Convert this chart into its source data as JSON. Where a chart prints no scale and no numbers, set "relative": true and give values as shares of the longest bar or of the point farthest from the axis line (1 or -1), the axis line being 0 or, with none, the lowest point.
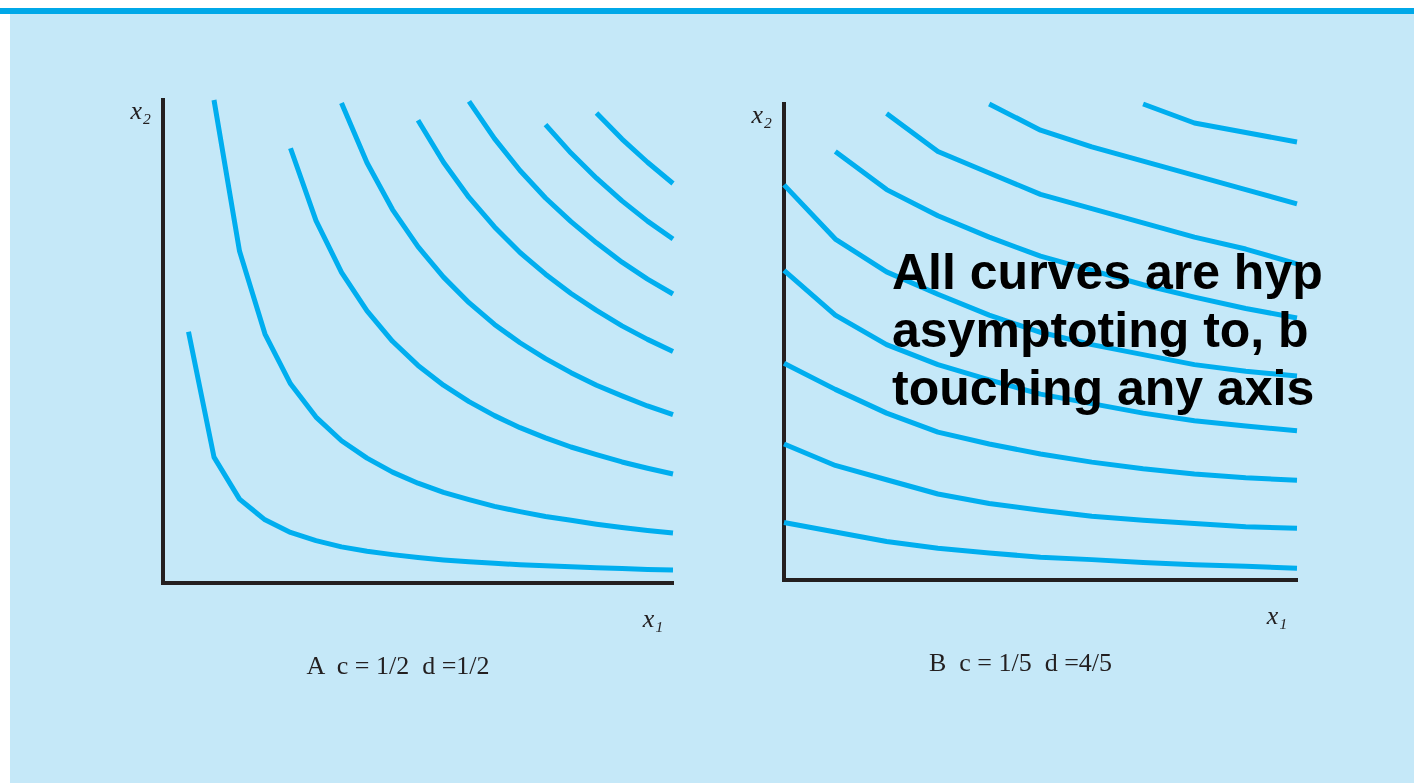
{
  "chart_data": [
    {
      "type": "line",
      "title": "A  c = 1/2  d =1/2",
      "xlabel": "x₁",
      "ylabel": "x₂",
      "relative": true,
      "grid": false,
      "legend": false,
      "marker": "none",
      "line_style": "solid",
      "categories": [
        null,
        null,
        null,
        null,
        null,
        null,
        null,
        null,
        null,
        null,
        null,
        null,
        null,
        null,
        null,
        null,
        null,
        null,
        null,
        null,
        null
      ],
      "series": [
        {
          "color": "#00aeef",
          "values": [
            null,
            0.52,
            0.26,
            0.173,
            0.13,
            0.104,
            0.087,
            0.074,
            0.065,
            0.058,
            0.052,
            0.047,
            0.043,
            0.04,
            0.037,
            0.035,
            0.033,
            0.031,
            0.029,
            0.027,
            0.026
          ]
        },
        {
          "color": "#00aeef",
          "values": [
            null,
            null,
            1.0,
            0.687,
            0.515,
            0.412,
            0.343,
            0.294,
            0.258,
            0.229,
            0.206,
            0.187,
            0.172,
            0.158,
            0.147,
            0.137,
            0.129,
            0.121,
            0.114,
            0.108,
            0.103
          ]
        },
        {
          "color": "#00aeef",
          "values": [
            null,
            null,
            null,
            null,
            null,
            0.9,
            0.75,
            0.643,
            0.563,
            0.5,
            0.45,
            0.409,
            0.375,
            0.346,
            0.321,
            0.3,
            0.281,
            0.265,
            0.25,
            0.237,
            0.225
          ]
        },
        {
          "color": "#00aeef",
          "values": [
            null,
            null,
            null,
            null,
            null,
            null,
            null,
            0.994,
            0.87,
            0.773,
            0.696,
            0.633,
            0.58,
            0.535,
            0.497,
            0.464,
            0.435,
            0.409,
            0.387,
            0.366,
            0.348
          ]
        },
        {
          "color": "#00aeef",
          "values": [
            null,
            null,
            null,
            null,
            null,
            null,
            null,
            null,
            null,
            null,
            0.958,
            0.871,
            0.798,
            0.737,
            0.684,
            0.639,
            0.599,
            0.564,
            0.532,
            0.504,
            0.479
          ]
        },
        {
          "color": "#00aeef",
          "values": [
            null,
            null,
            null,
            null,
            null,
            null,
            null,
            null,
            null,
            null,
            null,
            null,
            0.997,
            0.92,
            0.854,
            0.797,
            0.748,
            0.704,
            0.664,
            0.629,
            0.598
          ]
        },
        {
          "color": "#00aeef",
          "values": [
            null,
            null,
            null,
            null,
            null,
            null,
            null,
            null,
            null,
            null,
            null,
            null,
            null,
            null,
            null,
            0.949,
            0.89,
            0.838,
            0.791,
            0.749,
            0.712
          ]
        },
        {
          "color": "#00aeef",
          "values": [
            null,
            null,
            null,
            null,
            null,
            null,
            null,
            null,
            null,
            null,
            null,
            null,
            null,
            null,
            null,
            null,
            null,
            0.973,
            0.919,
            0.871,
            0.827
          ]
        }
      ]
    },
    {
      "type": "line",
      "title": "B  c = 1/5  d =4/5",
      "xlabel": "x₁",
      "ylabel": "x₂",
      "relative": true,
      "grid": false,
      "legend": false,
      "marker": "none",
      "line_style": "solid",
      "annotations": [
        "All curves are hyp\nasymptoting to, b\ntouching any axis"
      ],
      "categories": [
        null,
        null,
        null,
        null,
        null,
        null,
        null,
        null,
        null,
        null,
        null
      ],
      "series": [
        {
          "color": "#00aeef",
          "values": [
            0.12,
            0.1,
            0.08,
            0.066,
            0.056,
            0.047,
            0.042,
            0.036,
            0.031,
            0.028,
            0.024
          ]
        },
        {
          "color": "#00aeef",
          "values": [
            0.285,
            0.24,
            0.21,
            0.18,
            0.16,
            0.146,
            0.133,
            0.125,
            0.118,
            0.111,
            0.108
          ]
        },
        {
          "color": "#00aeef",
          "values": [
            0.455,
            0.4,
            0.35,
            0.31,
            0.285,
            0.264,
            0.247,
            0.233,
            0.222,
            0.214,
            0.209
          ]
        },
        {
          "color": "#00aeef",
          "values": [
            0.65,
            0.556,
            0.494,
            0.452,
            0.42,
            0.39,
            0.37,
            0.35,
            0.334,
            0.323,
            0.313
          ]
        },
        {
          "color": "#00aeef",
          "values": [
            0.83,
            0.716,
            0.647,
            0.6,
            0.556,
            0.52,
            0.494,
            0.473,
            0.452,
            0.438,
            0.428
          ]
        },
        {
          "color": "#00aeef",
          "values": [
            null,
            0.9,
            0.82,
            0.765,
            0.72,
            0.68,
            0.65,
            0.62,
            0.594,
            0.57,
            0.55
          ]
        },
        {
          "color": "#00aeef",
          "values": [
            null,
            null,
            0.98,
            0.9,
            0.855,
            0.81,
            0.78,
            0.75,
            0.72,
            0.695,
            0.664
          ]
        },
        {
          "color": "#00aeef",
          "values": [
            null,
            null,
            null,
            null,
            1.0,
            0.945,
            0.91,
            0.88,
            0.85,
            0.82,
            0.79
          ]
        },
        {
          "color": "#00aeef",
          "values": [
            null,
            null,
            null,
            null,
            null,
            null,
            null,
            1.0,
            0.96,
            0.94,
            0.92
          ]
        }
      ]
    }
  ]
}
